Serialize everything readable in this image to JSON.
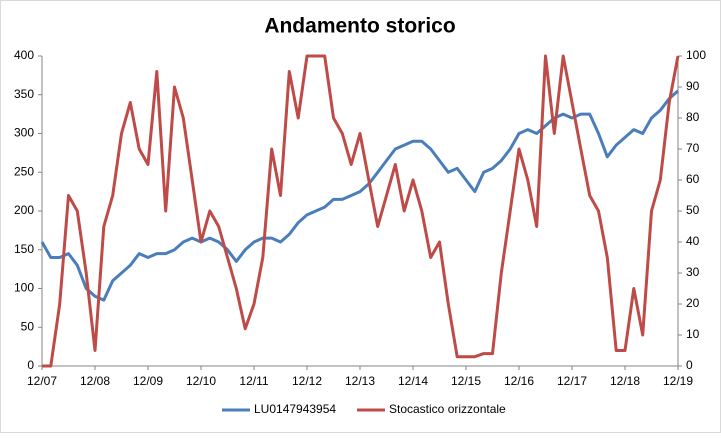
{
  "chart_data": {
    "type": "line",
    "title": "Andamento storico",
    "categories": [
      "12/07",
      null,
      null,
      null,
      null,
      null,
      "12/08",
      null,
      null,
      null,
      null,
      null,
      "12/09",
      null,
      null,
      null,
      null,
      null,
      "12/10",
      null,
      null,
      null,
      null,
      null,
      "12/11",
      null,
      null,
      null,
      null,
      null,
      "12/12",
      null,
      null,
      null,
      null,
      null,
      "12/13",
      null,
      null,
      null,
      null,
      null,
      "12/14",
      null,
      null,
      null,
      null,
      null,
      "12/15",
      null,
      null,
      null,
      null,
      null,
      "12/16",
      null,
      null,
      null,
      null,
      null,
      "12/17",
      null,
      null,
      null,
      null,
      null,
      "12/18",
      null,
      null,
      null,
      null,
      null,
      "12/19"
    ],
    "series": [
      {
        "name": "LU0147943954",
        "color": "#4a7ebb",
        "values": [
          160,
          140,
          140,
          145,
          130,
          100,
          90,
          85,
          110,
          120,
          130,
          145,
          140,
          145,
          145,
          150,
          160,
          165,
          160,
          165,
          160,
          150,
          135,
          150,
          160,
          165,
          165,
          160,
          170,
          185,
          195,
          200,
          205,
          215,
          215,
          220,
          225,
          235,
          250,
          265,
          280,
          285,
          290,
          290,
          280,
          265,
          250,
          255,
          240,
          225,
          250,
          255,
          265,
          280,
          300,
          305,
          300,
          310,
          320,
          325,
          320,
          325,
          325,
          300,
          270,
          285,
          295,
          305,
          300,
          320,
          330,
          345,
          355
        ]
      },
      {
        "name": "Stocastico orizzontale",
        "color": "#be4b48",
        "axis": "y2",
        "values": [
          0,
          0,
          20,
          55,
          50,
          30,
          5,
          45,
          55,
          75,
          85,
          70,
          65,
          95,
          50,
          90,
          80,
          60,
          40,
          50,
          45,
          35,
          25,
          12,
          20,
          35,
          70,
          55,
          95,
          80,
          100,
          100,
          100,
          80,
          75,
          65,
          75,
          60,
          45,
          55,
          65,
          50,
          60,
          50,
          35,
          40,
          20,
          3,
          3,
          3,
          4,
          4,
          30,
          50,
          70,
          60,
          45,
          100,
          75,
          100,
          85,
          70,
          55,
          50,
          35,
          5,
          5,
          25,
          10,
          50,
          60,
          85,
          100
        ]
      }
    ],
    "ylim": [
      0,
      400
    ],
    "yticks": [
      0,
      50,
      100,
      150,
      200,
      250,
      300,
      350,
      400
    ],
    "y2lim": [
      0,
      100
    ],
    "y2ticks": [
      0,
      10,
      20,
      30,
      40,
      50,
      60,
      70,
      80,
      90,
      100
    ],
    "legend": "bottom"
  }
}
